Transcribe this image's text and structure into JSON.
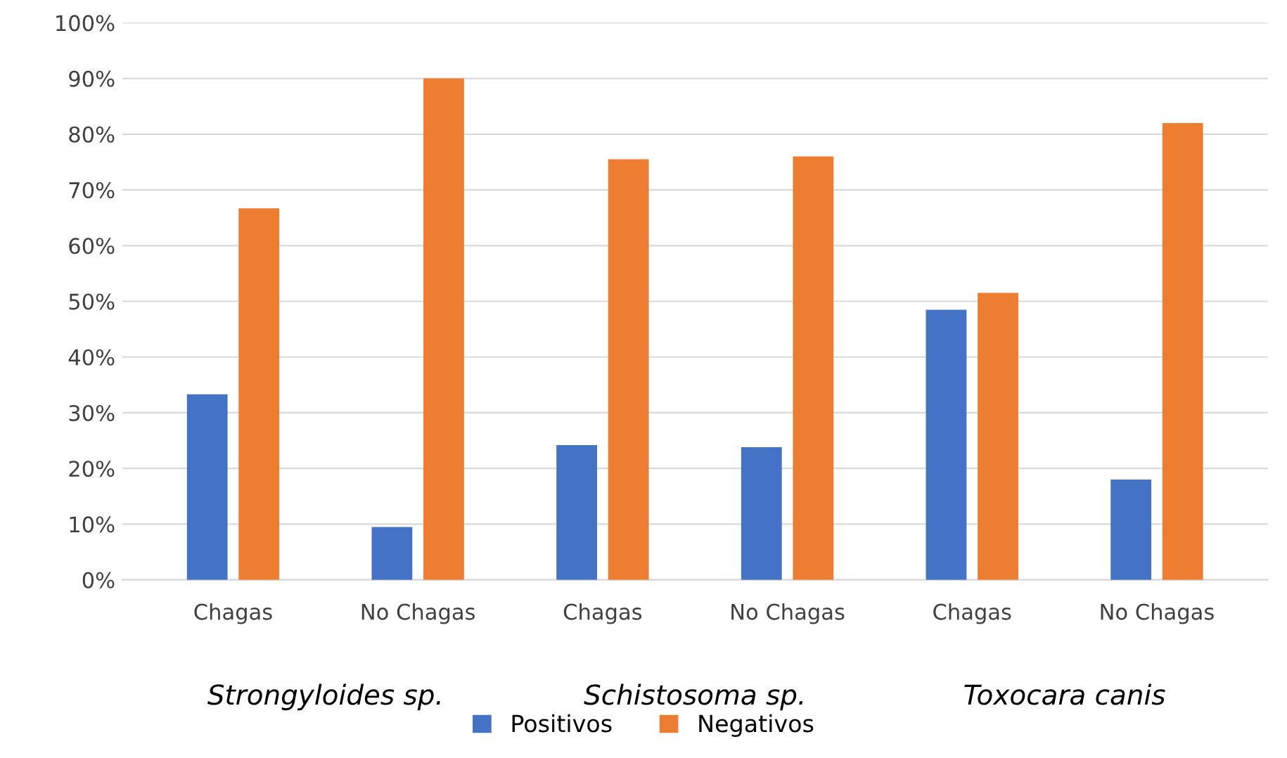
{
  "chart_data": {
    "type": "bar",
    "categories": [
      "Chagas",
      "No Chagas",
      "Chagas",
      "No Chagas",
      "Chagas",
      "No Chagas"
    ],
    "series": [
      {
        "name": "Positivos",
        "color": "#4472c4",
        "values": [
          33.3,
          9.5,
          24.2,
          23.8,
          48.5,
          18
        ]
      },
      {
        "name": "Negativos",
        "color": "#ed7d31",
        "values": [
          66.7,
          90,
          75.5,
          76,
          51.5,
          82
        ]
      }
    ],
    "annotations": [
      "Strongyloides sp.",
      "Schistosoma sp.",
      "Toxocara canis"
    ],
    "ylim": [
      0,
      100
    ],
    "yticks": [
      {
        "value": 0,
        "label": "0%"
      },
      {
        "value": 10,
        "label": "10%"
      },
      {
        "value": 20,
        "label": "20%"
      },
      {
        "value": 30,
        "label": "30%"
      },
      {
        "value": 40,
        "label": "40%"
      },
      {
        "value": 50,
        "label": "50%"
      },
      {
        "value": 60,
        "label": "60%"
      },
      {
        "value": 70,
        "label": "70%"
      },
      {
        "value": 80,
        "label": "80%"
      },
      {
        "value": 90,
        "label": "90%"
      },
      {
        "value": 100,
        "label": "100%"
      }
    ],
    "grid": "y",
    "legend": "bottom"
  }
}
